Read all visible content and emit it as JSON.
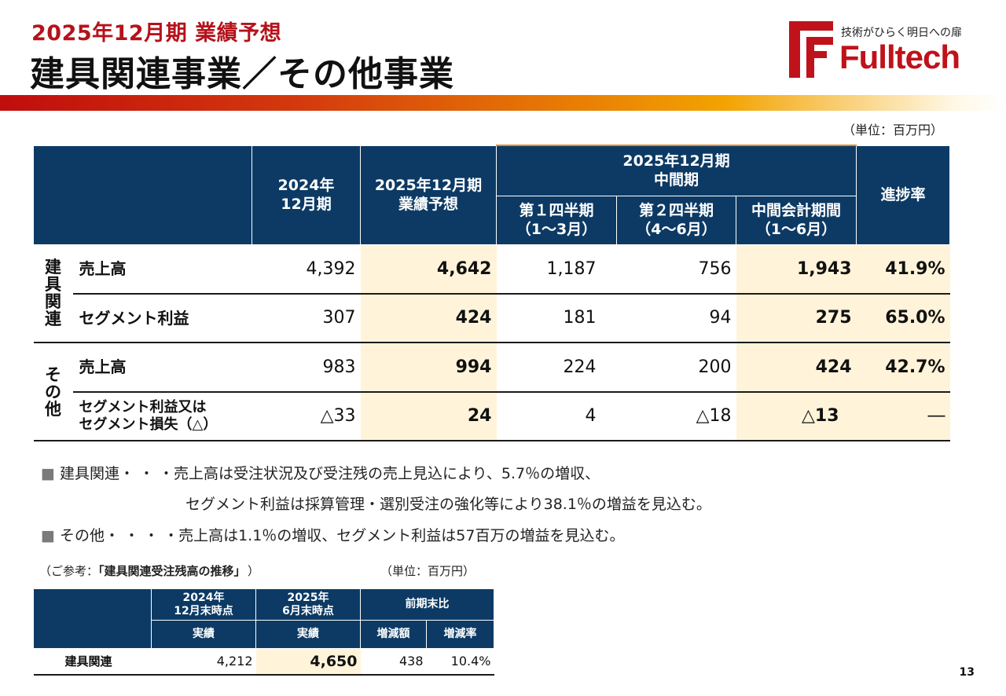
{
  "header": {
    "subtitle": "2025年12月期 業績予想",
    "title": "建具関連事業／その他事業"
  },
  "logo": {
    "tagline": "技術がひらく明日への扉",
    "name": "Fulltech",
    "brand_color": "#c0121a"
  },
  "unit_note": "（単位：百万円）",
  "main_table": {
    "headers": {
      "fy2024": "2024年\n12月期",
      "forecast": "2025年12月期\n業績予想",
      "interim_group": "2025年12月期\n中間期",
      "q1": "第１四半期\n（1～3月）",
      "q2": "第２四半期\n（4～6月）",
      "interim": "中間会計期間\n（1～6月）",
      "progress": "進捗率"
    },
    "groups": [
      {
        "label": "建\n具\n関\n連",
        "rows": [
          {
            "label": "売上高",
            "fy2024": "4,392",
            "forecast": "4,642",
            "q1": "1,187",
            "q2": "756",
            "interim": "1,943",
            "progress": "41.9%"
          },
          {
            "label": "セグメント利益",
            "fy2024": "307",
            "forecast": "424",
            "q1": "181",
            "q2": "94",
            "interim": "275",
            "progress": "65.0%"
          }
        ]
      },
      {
        "label": "そ\nの\n他",
        "rows": [
          {
            "label": "売上高",
            "fy2024": "983",
            "forecast": "994",
            "q1": "224",
            "q2": "200",
            "interim": "424",
            "progress": "42.7%"
          },
          {
            "label": "セグメント利益又は\nセグメント損失（△）",
            "fy2024": "△33",
            "forecast": "24",
            "q1": "4",
            "q2": "△18",
            "interim": "△13",
            "progress": "―"
          }
        ]
      }
    ],
    "highlight_color": "#fff4d9",
    "header_color": "#0c3a64"
  },
  "notes": {
    "line1": "建具関連・ ・ ・売上高は受注状況及び受注残の売上見込により、5.7％の増収、",
    "line2": "セグメント利益は採算管理・選別受注の強化等により38.1％の増益を見込む。",
    "line3": "その他・ ・ ・ ・売上高は1.1％の増収、セグメント利益は57百万の増益を見込む。",
    "bullet": "■"
  },
  "reference": {
    "caption_prefix": "（ご参考：",
    "caption_title": "「建具関連受注残高の推移」",
    "caption_suffix": "）",
    "unit": "（単位：百万円）",
    "headers": {
      "col1": "2024年\n12月末時点",
      "col2": "2025年\n6月末時点",
      "col3": "前期末比",
      "sub1": "実績",
      "sub2": "実績",
      "sub3": "増減額",
      "sub4": "増減率"
    },
    "row": {
      "label": "建具関連",
      "v2024": "4,212",
      "v2025": "4,650",
      "change": "438",
      "rate": "10.4%"
    }
  },
  "page_number": "13"
}
